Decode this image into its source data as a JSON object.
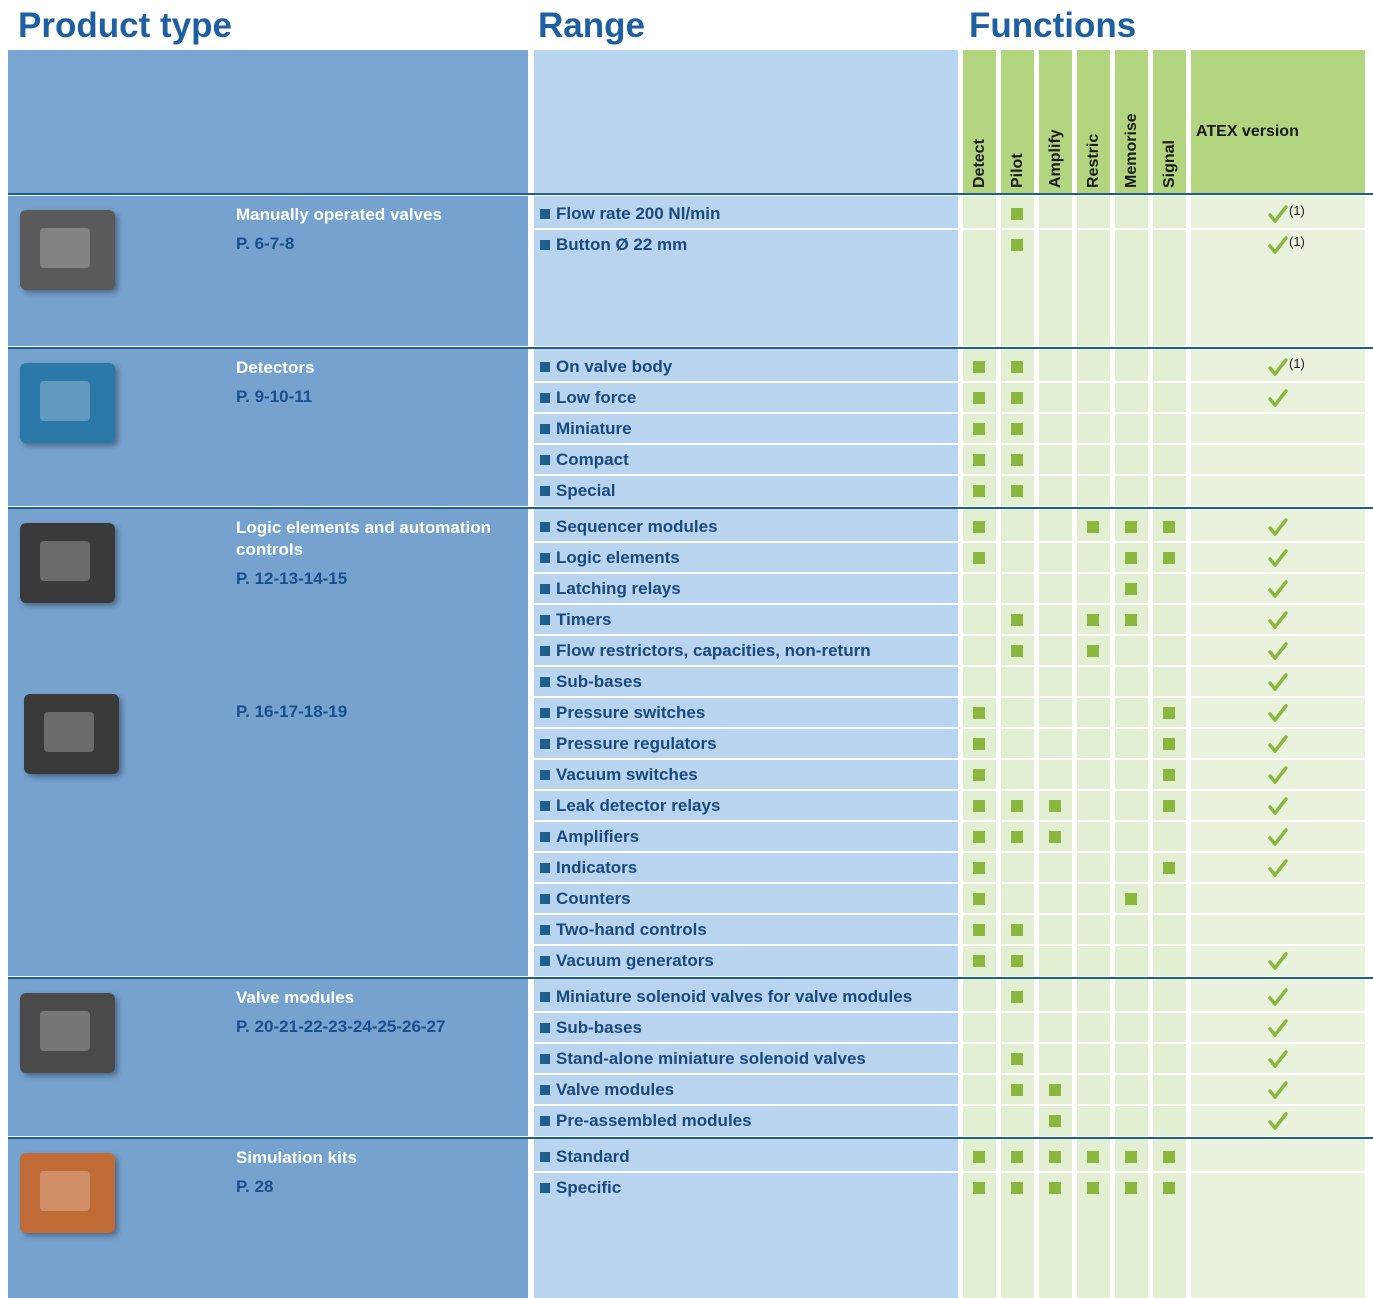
{
  "headers": {
    "product_type": "Product type",
    "range": "Range",
    "functions": "Functions"
  },
  "function_columns": [
    "Detect",
    "Pilot",
    "Amplify",
    "Restric",
    "Memorise",
    "Signal"
  ],
  "atex_column": "ATEX version",
  "groups": [
    {
      "name": "Manually operated valves",
      "sections": [
        {
          "pages": "P. 6-7-8",
          "rows": [
            {
              "range": "Flow rate 200 Nl/min",
              "functions": [
                false,
                true,
                false,
                false,
                false,
                false
              ],
              "atex": true,
              "atex_note": "(1)"
            },
            {
              "range": "Button Ø 22 mm",
              "functions": [
                false,
                true,
                false,
                false,
                false,
                false
              ],
              "atex": true,
              "atex_note": "(1)"
            }
          ]
        }
      ]
    },
    {
      "name": "Detectors",
      "sections": [
        {
          "pages": "P. 9-10-11",
          "rows": [
            {
              "range": "On valve body",
              "functions": [
                true,
                true,
                false,
                false,
                false,
                false
              ],
              "atex": true,
              "atex_note": "(1)"
            },
            {
              "range": "Low force",
              "functions": [
                true,
                true,
                false,
                false,
                false,
                false
              ],
              "atex": true
            },
            {
              "range": "Miniature",
              "functions": [
                true,
                true,
                false,
                false,
                false,
                false
              ],
              "atex": false
            },
            {
              "range": "Compact",
              "functions": [
                true,
                true,
                false,
                false,
                false,
                false
              ],
              "atex": false
            },
            {
              "range": "Special",
              "functions": [
                true,
                true,
                false,
                false,
                false,
                false
              ],
              "atex": false
            }
          ]
        }
      ]
    },
    {
      "name": "Logic elements and automation controls",
      "sections": [
        {
          "pages": "P. 12-13-14-15",
          "rows": [
            {
              "range": "Sequencer modules",
              "functions": [
                true,
                false,
                false,
                true,
                true,
                true
              ],
              "atex": true
            },
            {
              "range": "Logic elements",
              "functions": [
                true,
                false,
                false,
                false,
                true,
                true
              ],
              "atex": true
            },
            {
              "range": "Latching relays",
              "functions": [
                false,
                false,
                false,
                false,
                true,
                false
              ],
              "atex": true
            },
            {
              "range": "Timers",
              "functions": [
                false,
                true,
                false,
                true,
                true,
                false
              ],
              "atex": true
            },
            {
              "range": "Flow restrictors, capacities, non-return",
              "functions": [
                false,
                true,
                false,
                true,
                false,
                false
              ],
              "atex": true
            },
            {
              "range": "Sub-bases",
              "functions": [
                false,
                false,
                false,
                false,
                false,
                false
              ],
              "atex": true
            }
          ]
        },
        {
          "pages": "P. 16-17-18-19",
          "rows": [
            {
              "range": "Pressure switches",
              "functions": [
                true,
                false,
                false,
                false,
                false,
                true
              ],
              "atex": true
            },
            {
              "range": "Pressure regulators",
              "functions": [
                true,
                false,
                false,
                false,
                false,
                true
              ],
              "atex": true
            },
            {
              "range": "Vacuum switches",
              "functions": [
                true,
                false,
                false,
                false,
                false,
                true
              ],
              "atex": true
            },
            {
              "range": "Leak detector relays",
              "functions": [
                true,
                true,
                true,
                false,
                false,
                true
              ],
              "atex": true
            },
            {
              "range": "Amplifiers",
              "functions": [
                true,
                true,
                true,
                false,
                false,
                false
              ],
              "atex": true
            },
            {
              "range": "Indicators",
              "functions": [
                true,
                false,
                false,
                false,
                false,
                true
              ],
              "atex": true
            },
            {
              "range": "Counters",
              "functions": [
                true,
                false,
                false,
                false,
                true,
                false
              ],
              "atex": false
            },
            {
              "range": "Two-hand controls",
              "functions": [
                true,
                true,
                false,
                false,
                false,
                false
              ],
              "atex": false
            },
            {
              "range": "Vacuum generators",
              "functions": [
                true,
                true,
                false,
                false,
                false,
                false
              ],
              "atex": true
            }
          ]
        }
      ]
    },
    {
      "name": "Valve modules",
      "sections": [
        {
          "pages": "P. 20-21-22-23-24-25-26-27",
          "rows": [
            {
              "range": "Miniature solenoid valves for valve modules",
              "functions": [
                false,
                true,
                false,
                false,
                false,
                false
              ],
              "atex": true
            },
            {
              "range": "Sub-bases",
              "functions": [
                false,
                false,
                false,
                false,
                false,
                false
              ],
              "atex": true
            },
            {
              "range": "Stand-alone miniature solenoid valves",
              "functions": [
                false,
                true,
                false,
                false,
                false,
                false
              ],
              "atex": true
            },
            {
              "range": "Valve modules",
              "functions": [
                false,
                true,
                true,
                false,
                false,
                false
              ],
              "atex": true
            },
            {
              "range": "Pre-assembled modules",
              "functions": [
                false,
                false,
                true,
                false,
                false,
                false
              ],
              "atex": true
            }
          ]
        }
      ]
    },
    {
      "name": "Simulation kits",
      "sections": [
        {
          "pages": "P. 28",
          "rows": [
            {
              "range": "Standard",
              "functions": [
                true,
                true,
                true,
                true,
                true,
                true
              ],
              "atex": false
            },
            {
              "range": "Specific",
              "functions": [
                true,
                true,
                true,
                true,
                true,
                true
              ],
              "atex": false
            }
          ]
        }
      ]
    }
  ]
}
